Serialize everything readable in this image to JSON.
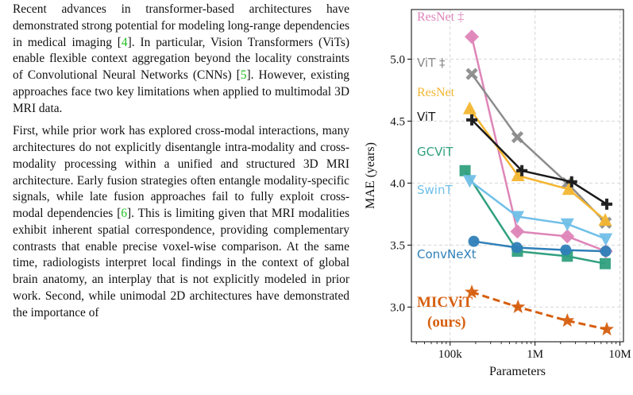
{
  "text": {
    "p1": [
      {
        "t": "Recent advances in transformer-based architectures have demonstrated strong potential for modeling long-range dependencies in medical imaging ["
      },
      {
        "t": "4",
        "cite": true
      },
      {
        "t": "]. In particular, Vision Transformers (ViTs) enable flexible context aggregation beyond the locality constraints of Convolutional Neural Networks (CNNs) ["
      },
      {
        "t": "5",
        "cite": true
      },
      {
        "t": "]. However, existing approaches face two key limitations when applied to multimodal 3D MRI data."
      }
    ],
    "p2": [
      {
        "t": "First, while prior work has explored cross-modal interactions, many architectures do not explicitly disentangle intra-modality and cross-modality processing within a unified and structured 3D MRI architecture. Early fusion strategies often entangle modality-specific signals, while late fusion approaches fail to fully exploit cross-modal dependencies ["
      },
      {
        "t": "6",
        "cite": true
      },
      {
        "t": "]. This is limiting given that MRI modalities exhibit inherent spatial correspondence, providing complementary contrasts that enable precise voxel-wise comparison. At the same time, radiologists interpret local findings in the context of global brain anatomy, an interplay that is not explicitly modeled in prior work. Second, while unimodal 2D architectures have demonstrated the importance of"
      }
    ]
  },
  "chart_data": {
    "type": "line",
    "xlabel": "Parameters",
    "ylabel": "MAE (years)",
    "xscale": "log",
    "xlim": [
      35000,
      11000000
    ],
    "ylim": [
      2.72,
      5.4
    ],
    "xticks": [
      {
        "v": 100000,
        "label": "100k"
      },
      {
        "v": 1000000,
        "label": "1M"
      },
      {
        "v": 10000000,
        "label": "10M"
      }
    ],
    "yticks": [
      {
        "v": 3.0,
        "label": "3.0"
      },
      {
        "v": 3.5,
        "label": "3.5"
      },
      {
        "v": 4.0,
        "label": "4.0"
      },
      {
        "v": 4.5,
        "label": "4.5"
      },
      {
        "v": 5.0,
        "label": "5.0"
      }
    ],
    "grid": true,
    "series": [
      {
        "name": "ResNet ‡",
        "color": "#de85b8",
        "marker": "diamond",
        "x": [
          180000,
          620000,
          2400000,
          6800000
        ],
        "y": [
          5.18,
          3.61,
          3.57,
          3.45
        ]
      },
      {
        "name": "ViT ‡",
        "color": "#8c8c8c",
        "marker": "cross",
        "x": [
          180000,
          620000,
          2400000,
          6800000
        ],
        "y": [
          4.88,
          4.37,
          4.0,
          3.68
        ]
      },
      {
        "name": "ResNet",
        "color": "#f3b632",
        "marker": "triangle-up",
        "x": [
          170000,
          630000,
          2500000,
          6700000
        ],
        "y": [
          4.6,
          4.06,
          3.95,
          3.7
        ]
      },
      {
        "name": "ViT",
        "color": "#1a1a1a",
        "marker": "plus",
        "x": [
          180000,
          700000,
          2700000,
          7000000
        ],
        "y": [
          4.51,
          4.1,
          4.01,
          3.83
        ]
      },
      {
        "name": "GCViT",
        "color": "#30a07e",
        "marker": "square",
        "x": [
          150000,
          620000,
          2400000,
          6700000
        ],
        "y": [
          4.1,
          3.45,
          3.41,
          3.35
        ]
      },
      {
        "name": "SwinT",
        "color": "#70bfe8",
        "marker": "triangle-down",
        "x": [
          170000,
          620000,
          2400000,
          6800000
        ],
        "y": [
          4.02,
          3.73,
          3.67,
          3.55
        ]
      },
      {
        "name": "ConvNeXt",
        "color": "#2f7fb8",
        "marker": "circle",
        "x": [
          190000,
          610000,
          2300000,
          6800000
        ],
        "y": [
          3.53,
          3.48,
          3.46,
          3.45
        ]
      },
      {
        "name": "MICViT (ours)",
        "color": "#d65f0e",
        "marker": "star",
        "dashed": true,
        "x": [
          180000,
          630000,
          2400000,
          7000000
        ],
        "y": [
          3.12,
          3.0,
          2.89,
          2.82
        ]
      }
    ],
    "legend": [
      {
        "lines": [
          "ResNet ‡"
        ],
        "color": "#de85b8",
        "font": "serif",
        "bold": false
      },
      {
        "lines": [
          "ViT ‡"
        ],
        "color": "#8c8c8c",
        "font": "sans",
        "bold": false
      },
      {
        "lines": [
          "ResNet"
        ],
        "color": "#f3b632",
        "font": "serif",
        "bold": false
      },
      {
        "lines": [
          "ViT"
        ],
        "color": "#1a1a1a",
        "font": "sans",
        "bold": false
      },
      {
        "lines": [
          "GCViT"
        ],
        "color": "#30a07e",
        "font": "sans",
        "bold": false
      },
      {
        "lines": [
          "SwinT"
        ],
        "color": "#70bfe8",
        "font": "sans",
        "bold": false
      },
      {
        "lines": [
          "ConvNeXt"
        ],
        "color": "#2f7fb8",
        "font": "sans",
        "bold": false
      },
      {
        "lines": [
          "MICViT",
          "(ours)"
        ],
        "color": "#d65f0e",
        "font": "serif",
        "bold": true
      }
    ]
  }
}
